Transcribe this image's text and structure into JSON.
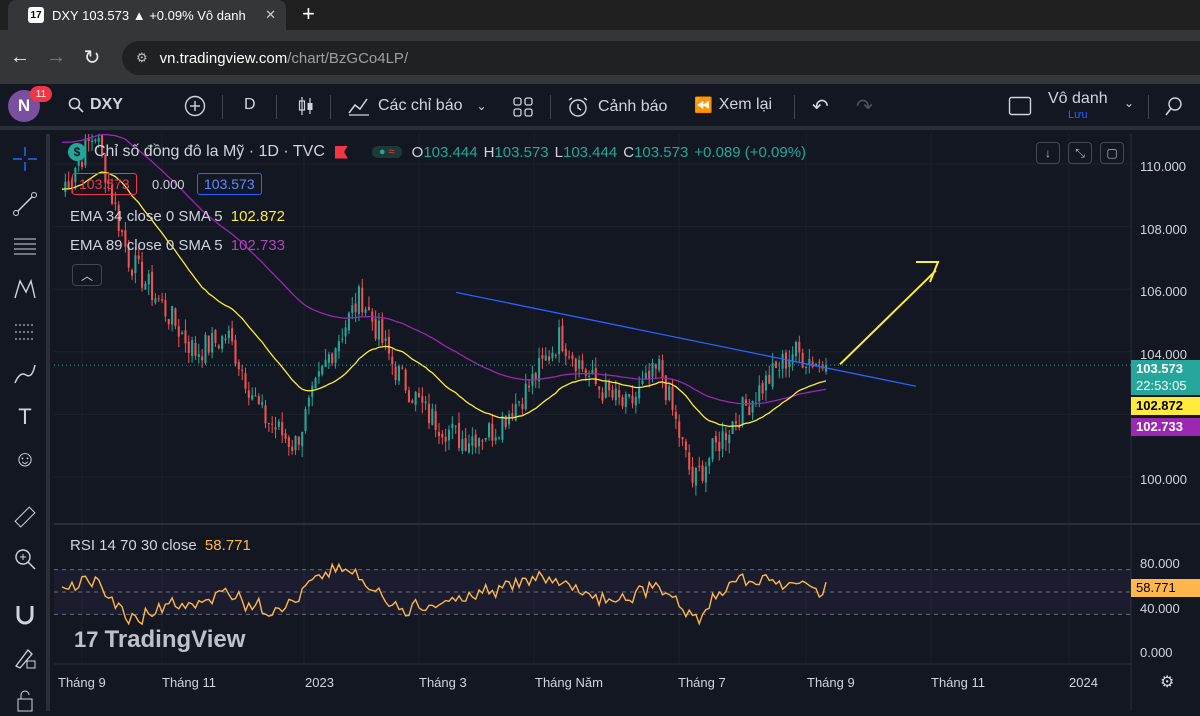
{
  "browser": {
    "tab_title": "DXY 103.573 ▲ +0.09% Vô danh",
    "url_host": "vn.tradingview.com",
    "url_path": "/chart/BzGCo4LP/"
  },
  "toolbar": {
    "avatar_letter": "N",
    "notification_count": "11",
    "symbol": "DXY",
    "interval": "D",
    "indicators_label": "Các chỉ báo",
    "alerts_label": "Cảnh báo",
    "replay_label": "Xem lại",
    "layout_name": "Vô danh",
    "layout_status": "Lưu"
  },
  "legend": {
    "title": "Chỉ số đồng đô la Mỹ · 1D · TVC",
    "o_label": "O",
    "o_value": "103.444",
    "h_label": "H",
    "h_value": "103.573",
    "l_label": "L",
    "l_value": "103.444",
    "c_label": "C",
    "c_value": "103.573",
    "change": "+0.089 (+0.09%)",
    "sell_price": "103.573",
    "spread": "0.000",
    "buy_price": "103.573",
    "ema1_label": "EMA 34 close 0 SMA 5",
    "ema1_value": "102.872",
    "ema2_label": "EMA 89 close 0 SMA 5",
    "ema2_value": "102.733",
    "rsi_label": "RSI 14 70 30 close",
    "rsi_value": "58.771"
  },
  "price_axis": {
    "ticks": [
      "110.000",
      "108.000",
      "106.000",
      "104.000",
      "100.000"
    ],
    "last_price": "103.573",
    "countdown": "22:53:05",
    "ema1_tag": "102.872",
    "ema2_tag": "102.733"
  },
  "rsi_axis": {
    "ticks": [
      "80.000",
      "40.000",
      "0.000"
    ],
    "current": "58.771"
  },
  "time_axis": [
    "Tháng 9",
    "Tháng 11",
    "2023",
    "Tháng 3",
    "Tháng Năm",
    "Tháng 7",
    "Tháng 9",
    "Tháng 11",
    "2024"
  ],
  "watermark": "TradingView",
  "colors": {
    "background": "#131722",
    "up": "#26a69a",
    "down": "#ef5350",
    "ema34": "#ffeb3b",
    "ema89": "#9c27b0",
    "trendline": "#2962ff",
    "rsi": "#ffb74d"
  },
  "chart_data": {
    "type": "candlestick",
    "symbol": "DXY",
    "interval": "1D",
    "ylim": [
      99.5,
      110.5
    ],
    "price_path": [
      {
        "x": "Tháng 9",
        "y": 109.2
      },
      {
        "x": "Tháng 9",
        "y": 111.0
      },
      {
        "x": "Tháng 11",
        "y": 107.0
      },
      {
        "x": "Tháng 11",
        "y": 105.5
      },
      {
        "x": "Tháng 11",
        "y": 104.0
      },
      {
        "x": "2023",
        "y": 104.5
      },
      {
        "x": "2023",
        "y": 102.0
      },
      {
        "x": "2023",
        "y": 101.0
      },
      {
        "x": "Tháng 3",
        "y": 103.8
      },
      {
        "x": "Tháng 3",
        "y": 105.8
      },
      {
        "x": "Tháng 3",
        "y": 103.5
      },
      {
        "x": "Tháng 3",
        "y": 102.0
      },
      {
        "x": "Tháng Năm",
        "y": 101.2
      },
      {
        "x": "Tháng Năm",
        "y": 101.5
      },
      {
        "x": "Tháng Năm",
        "y": 102.8
      },
      {
        "x": "Tháng Năm",
        "y": 104.5
      },
      {
        "x": "Tháng 7",
        "y": 103.0
      },
      {
        "x": "Tháng 7",
        "y": 102.2
      },
      {
        "x": "Tháng 7",
        "y": 103.5
      },
      {
        "x": "Tháng 7",
        "y": 99.8
      },
      {
        "x": "Tháng 7",
        "y": 101.5
      },
      {
        "x": "Tháng 9",
        "y": 102.8
      },
      {
        "x": "Tháng 9",
        "y": 104.0
      },
      {
        "x": "Tháng 9",
        "y": 103.573
      }
    ],
    "rsi_ylim": [
      0,
      100
    ],
    "rsi_levels": [
      70,
      30
    ]
  }
}
